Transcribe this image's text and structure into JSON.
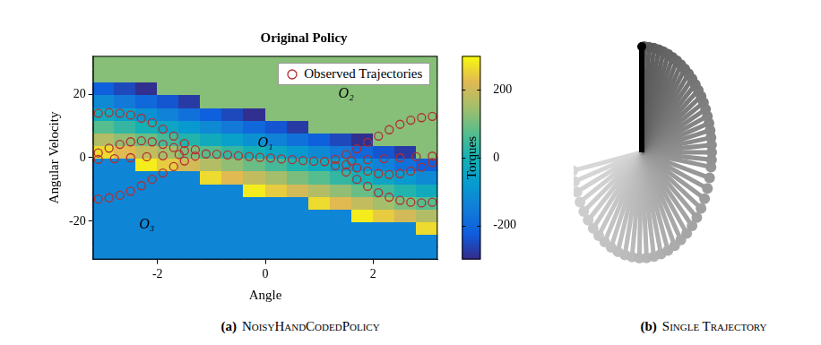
{
  "chart_data": {
    "type": "scatter",
    "title": "Original Policy",
    "x_label": "Angle",
    "y_label": "Angular Velocity",
    "xlim": [
      -3.2,
      3.2
    ],
    "ylim": [
      -32,
      32
    ],
    "xticks": [
      -2,
      0,
      2
    ],
    "yticks": [
      -20,
      0,
      20
    ],
    "grid": false,
    "legend": "upper right",
    "series": [
      {
        "name": "Observed Trajectories",
        "color": "#b03030",
        "marker": "circle",
        "x": [
          -3.1,
          -2.9,
          -2.7,
          -2.5,
          -2.3,
          -2.1,
          -1.9,
          -1.7,
          -1.5,
          -1.3,
          -1.1,
          -3.1,
          -2.9,
          -2.7,
          -2.5,
          -2.3,
          -2.1,
          -1.9,
          -1.7,
          -1.5,
          -1.3,
          -3.1,
          -2.9,
          -2.7,
          -2.5,
          -2.3,
          -2.1,
          -1.9,
          -1.7,
          -1.5,
          -3.1,
          -2.8,
          -2.5,
          -2.2,
          -1.9,
          -1.6,
          -0.9,
          -0.7,
          -0.5,
          -0.3,
          -0.1,
          0.1,
          0.3,
          0.5,
          0.7,
          0.9,
          3.1,
          2.9,
          2.7,
          2.5,
          2.3,
          2.1,
          1.9,
          1.7,
          1.5,
          1.3,
          1.1,
          3.1,
          2.9,
          2.7,
          2.5,
          2.3,
          2.1,
          1.9,
          1.7,
          1.5,
          1.3,
          3.1,
          2.9,
          2.7,
          2.5,
          2.3,
          2.1,
          1.9,
          1.7,
          1.5,
          3.1,
          2.8,
          2.5,
          2.2,
          1.9,
          1.6
        ],
        "values": [
          14,
          14.2,
          14,
          13.4,
          12.4,
          11,
          9,
          6.8,
          4.5,
          2.5,
          1.2,
          -13,
          -12.6,
          -11.8,
          -10.5,
          -8.8,
          -6.8,
          -4.8,
          -2.8,
          -1,
          0.5,
          1.5,
          3,
          4.2,
          5,
          5.3,
          5,
          4.2,
          3.2,
          2.2,
          -0.5,
          -0.3,
          0,
          0.3,
          0.6,
          1,
          1.1,
          0.9,
          0.6,
          0.4,
          0.1,
          -0.1,
          -0.4,
          -0.6,
          -0.9,
          -1.1,
          -14,
          -14.2,
          -14,
          -13.4,
          -12.4,
          -11,
          -9,
          -6.8,
          -4.5,
          -2.5,
          -1.2,
          13,
          12.6,
          11.8,
          10.5,
          8.8,
          6.8,
          4.8,
          2.8,
          1,
          -0.5,
          -1.5,
          -3,
          -4.2,
          -5,
          -5.3,
          -5,
          -4.2,
          -3.2,
          -2.2,
          0.5,
          0.3,
          0,
          -0.3,
          -0.6,
          -1
        ]
      }
    ],
    "heatmap": {
      "x": [
        -3.0,
        -2.6,
        -2.2,
        -1.8,
        -1.4,
        -1.0,
        -0.6,
        -0.2,
        0.2,
        0.6,
        1.0,
        1.4,
        1.8,
        2.2,
        2.6,
        3.0
      ],
      "y": [
        -30,
        -26,
        -22,
        -18,
        -14,
        -10,
        -6,
        -2,
        2,
        6,
        10,
        14,
        18,
        22,
        26,
        30
      ],
      "values": [
        [
          -130,
          -130,
          -130,
          -130,
          -130,
          -130,
          -130,
          -130,
          -130,
          -130,
          -130,
          -130,
          -130,
          -130,
          -130,
          -130
        ],
        [
          -130,
          -130,
          -130,
          -130,
          -130,
          -130,
          -130,
          -130,
          -130,
          -130,
          -130,
          -130,
          -130,
          -130,
          -130,
          -130
        ],
        [
          -130,
          -130,
          -130,
          -130,
          -130,
          -130,
          -130,
          -130,
          -130,
          -130,
          -130,
          -130,
          -130,
          -130,
          -130,
          264
        ],
        [
          -130,
          -130,
          -130,
          -130,
          -130,
          -130,
          -130,
          -130,
          -130,
          -130,
          -130,
          -130,
          283,
          245,
          206,
          168
        ],
        [
          -130,
          -130,
          -130,
          -130,
          -130,
          -130,
          -130,
          -130,
          -130,
          -130,
          264,
          226,
          187,
          149,
          110,
          72
        ],
        [
          -130,
          -130,
          -130,
          -130,
          -130,
          -130,
          -130,
          283,
          245,
          206,
          168,
          130,
          91,
          53,
          14,
          -24
        ],
        [
          -130,
          -130,
          -130,
          -130,
          -130,
          264,
          226,
          187,
          149,
          110,
          72,
          34,
          -5,
          -43,
          -82,
          -120
        ],
        [
          -130,
          -130,
          283,
          245,
          206,
          168,
          130,
          91,
          53,
          14,
          -24,
          -62,
          -101,
          -139,
          -178,
          -216
        ],
        [
          264,
          226,
          187,
          149,
          110,
          72,
          34,
          -5,
          -43,
          -82,
          -120,
          -158,
          -197,
          -235,
          -274,
          120
        ],
        [
          168,
          130,
          91,
          53,
          14,
          -24,
          -62,
          -101,
          -139,
          -178,
          -216,
          -254,
          -293,
          120,
          120,
          120
        ],
        [
          72,
          34,
          -5,
          -43,
          -82,
          -120,
          -158,
          -197,
          -235,
          -274,
          120,
          120,
          120,
          120,
          120,
          120
        ],
        [
          -24,
          -62,
          -101,
          -139,
          -178,
          -216,
          -254,
          -293,
          120,
          120,
          120,
          120,
          120,
          120,
          120,
          120
        ],
        [
          -120,
          -158,
          -197,
          -235,
          -274,
          120,
          120,
          120,
          120,
          120,
          120,
          120,
          120,
          120,
          120,
          120
        ],
        [
          -216,
          -254,
          -293,
          120,
          120,
          120,
          120,
          120,
          120,
          120,
          120,
          120,
          120,
          120,
          120,
          120
        ],
        [
          120,
          120,
          120,
          120,
          120,
          120,
          120,
          120,
          120,
          120,
          120,
          120,
          120,
          120,
          120,
          120
        ],
        [
          120,
          120,
          120,
          120,
          120,
          120,
          120,
          120,
          120,
          120,
          120,
          120,
          120,
          120,
          120,
          120
        ]
      ]
    },
    "colorbar": {
      "label": "Torques",
      "range": [
        -300,
        300
      ],
      "ticks": [
        -200,
        0,
        200
      ]
    },
    "annotations": [
      {
        "text": "O₁",
        "x": 0,
        "y": 4.5
      },
      {
        "text": "O₂",
        "x": 1.5,
        "y": 20
      },
      {
        "text": "O₃",
        "x": -2.2,
        "y": -21
      }
    ],
    "caption_label": "(a)",
    "caption": "NoisyHandCodedPolicy"
  },
  "diagram": {
    "type": "pendulum",
    "caption_label": "(b)",
    "caption": "Single Trajectory",
    "angles": [
      100,
      106,
      112,
      118,
      124,
      130,
      136,
      142,
      148,
      154,
      160,
      166,
      172,
      178,
      184,
      190,
      196,
      202,
      208,
      214,
      220,
      226,
      232,
      238,
      244,
      250,
      256,
      262,
      266,
      270,
      274,
      278,
      282,
      286,
      290,
      294,
      298,
      302,
      306,
      310,
      314,
      318,
      322,
      326,
      330,
      334,
      338,
      342,
      346,
      350,
      354,
      358,
      360
    ]
  }
}
